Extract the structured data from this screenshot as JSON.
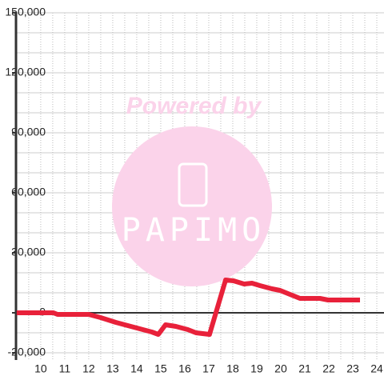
{
  "chart_data": {
    "type": "line",
    "watermark": {
      "caption": "Powered by",
      "brand": "PAPIMO"
    },
    "x": [
      9.0,
      10.53,
      10.7,
      12.0,
      12.5,
      13.13,
      13.63,
      14.13,
      14.63,
      14.9,
      15.2,
      15.63,
      16.13,
      16.47,
      17.03,
      17.7,
      18.03,
      18.47,
      18.8,
      19.13,
      19.63,
      19.97,
      20.3,
      20.8,
      21.63,
      21.97,
      23.3
    ],
    "values": [
      0,
      0,
      -800,
      -800,
      -2400,
      -4800,
      -6400,
      -8000,
      -9600,
      -10800,
      -6000,
      -6800,
      -8400,
      -10000,
      -10800,
      16400,
      16000,
      14400,
      14800,
      13600,
      12000,
      11200,
      9600,
      7200,
      7200,
      6400,
      6400
    ],
    "color": "#e8213a",
    "xlim": [
      8.97,
      24.3
    ],
    "xticks": [
      10,
      11,
      12,
      13,
      14,
      15,
      16,
      17,
      18,
      19,
      20,
      21,
      22,
      23,
      24
    ],
    "x_minor_ticks": [
      9.5,
      10.5,
      11.5,
      12.5,
      13.5,
      14.5,
      15.5,
      16.5,
      17.5,
      18.5,
      19.5,
      20.5,
      21.5,
      22.5,
      23.5
    ],
    "ylim": [
      -20000,
      150000
    ],
    "yticks": [
      {
        "value": -20000,
        "label": "-20,000"
      },
      0,
      {
        "value": 30000,
        "label": "30,000"
      },
      {
        "value": 60000,
        "label": "60,000"
      },
      {
        "value": 90000,
        "label": "90,000"
      },
      {
        "value": 120000,
        "label": "120,000"
      },
      {
        "value": 150000,
        "label": "150,000"
      }
    ],
    "y_minor_ticks": [
      -10000,
      10000,
      20000,
      40000,
      50000,
      70000,
      80000,
      100000,
      110000,
      130000,
      140000
    ],
    "grid": true
  }
}
